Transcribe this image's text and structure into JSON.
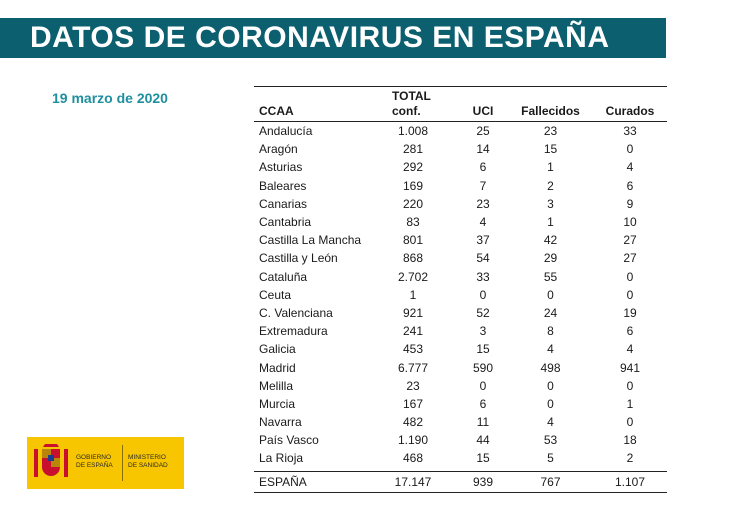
{
  "banner": {
    "title": "DATOS DE CORONAVIRUS EN ESPAÑA"
  },
  "date": "19 marzo de 2020",
  "table": {
    "headers": {
      "region": "CCAA",
      "total_line1": "TOTAL",
      "total_line2": "conf.",
      "uci": "UCI",
      "deaths": "Fallecidos",
      "recovered": "Curados"
    },
    "rows": [
      [
        "Andalucía",
        "1.008",
        "25",
        "23",
        "33"
      ],
      [
        "Aragón",
        "281",
        "14",
        "15",
        "0"
      ],
      [
        "Asturias",
        "292",
        "6",
        "1",
        "4"
      ],
      [
        "Baleares",
        "169",
        "7",
        "2",
        "6"
      ],
      [
        "Canarias",
        "220",
        "23",
        "3",
        "9"
      ],
      [
        "Cantabria",
        "83",
        "4",
        "1",
        "10"
      ],
      [
        "Castilla La Mancha",
        "801",
        "37",
        "42",
        "27"
      ],
      [
        "Castilla y León",
        "868",
        "54",
        "29",
        "27"
      ],
      [
        "Cataluña",
        "2.702",
        "33",
        "55",
        "0"
      ],
      [
        "Ceuta",
        "1",
        "0",
        "0",
        "0"
      ],
      [
        "C. Valenciana",
        "921",
        "52",
        "24",
        "19"
      ],
      [
        "Extremadura",
        "241",
        "3",
        "8",
        "6"
      ],
      [
        "Galicia",
        "453",
        "15",
        "4",
        "4"
      ],
      [
        "Madrid",
        "6.777",
        "590",
        "498",
        "941"
      ],
      [
        "Melilla",
        "23",
        "0",
        "0",
        "0"
      ],
      [
        "Murcia",
        "167",
        "6",
        "0",
        "1"
      ],
      [
        "Navarra",
        "482",
        "11",
        "4",
        "0"
      ],
      [
        "País Vasco",
        "1.190",
        "44",
        "53",
        "18"
      ],
      [
        "La Rioja",
        "468",
        "15",
        "5",
        "2"
      ]
    ],
    "total": [
      "ESPAÑA",
      "17.147",
      "939",
      "767",
      "1.107"
    ]
  },
  "logo": {
    "left_line1": "GOBIERNO",
    "left_line2": "DE ESPAÑA",
    "right_line1": "MINISTERIO",
    "right_line2": "DE SANIDAD",
    "colors": {
      "background": "#f7c600",
      "shield_red": "#c8102e"
    }
  },
  "colors": {
    "banner": "#0b5f6f",
    "date": "#1f8fa0"
  }
}
